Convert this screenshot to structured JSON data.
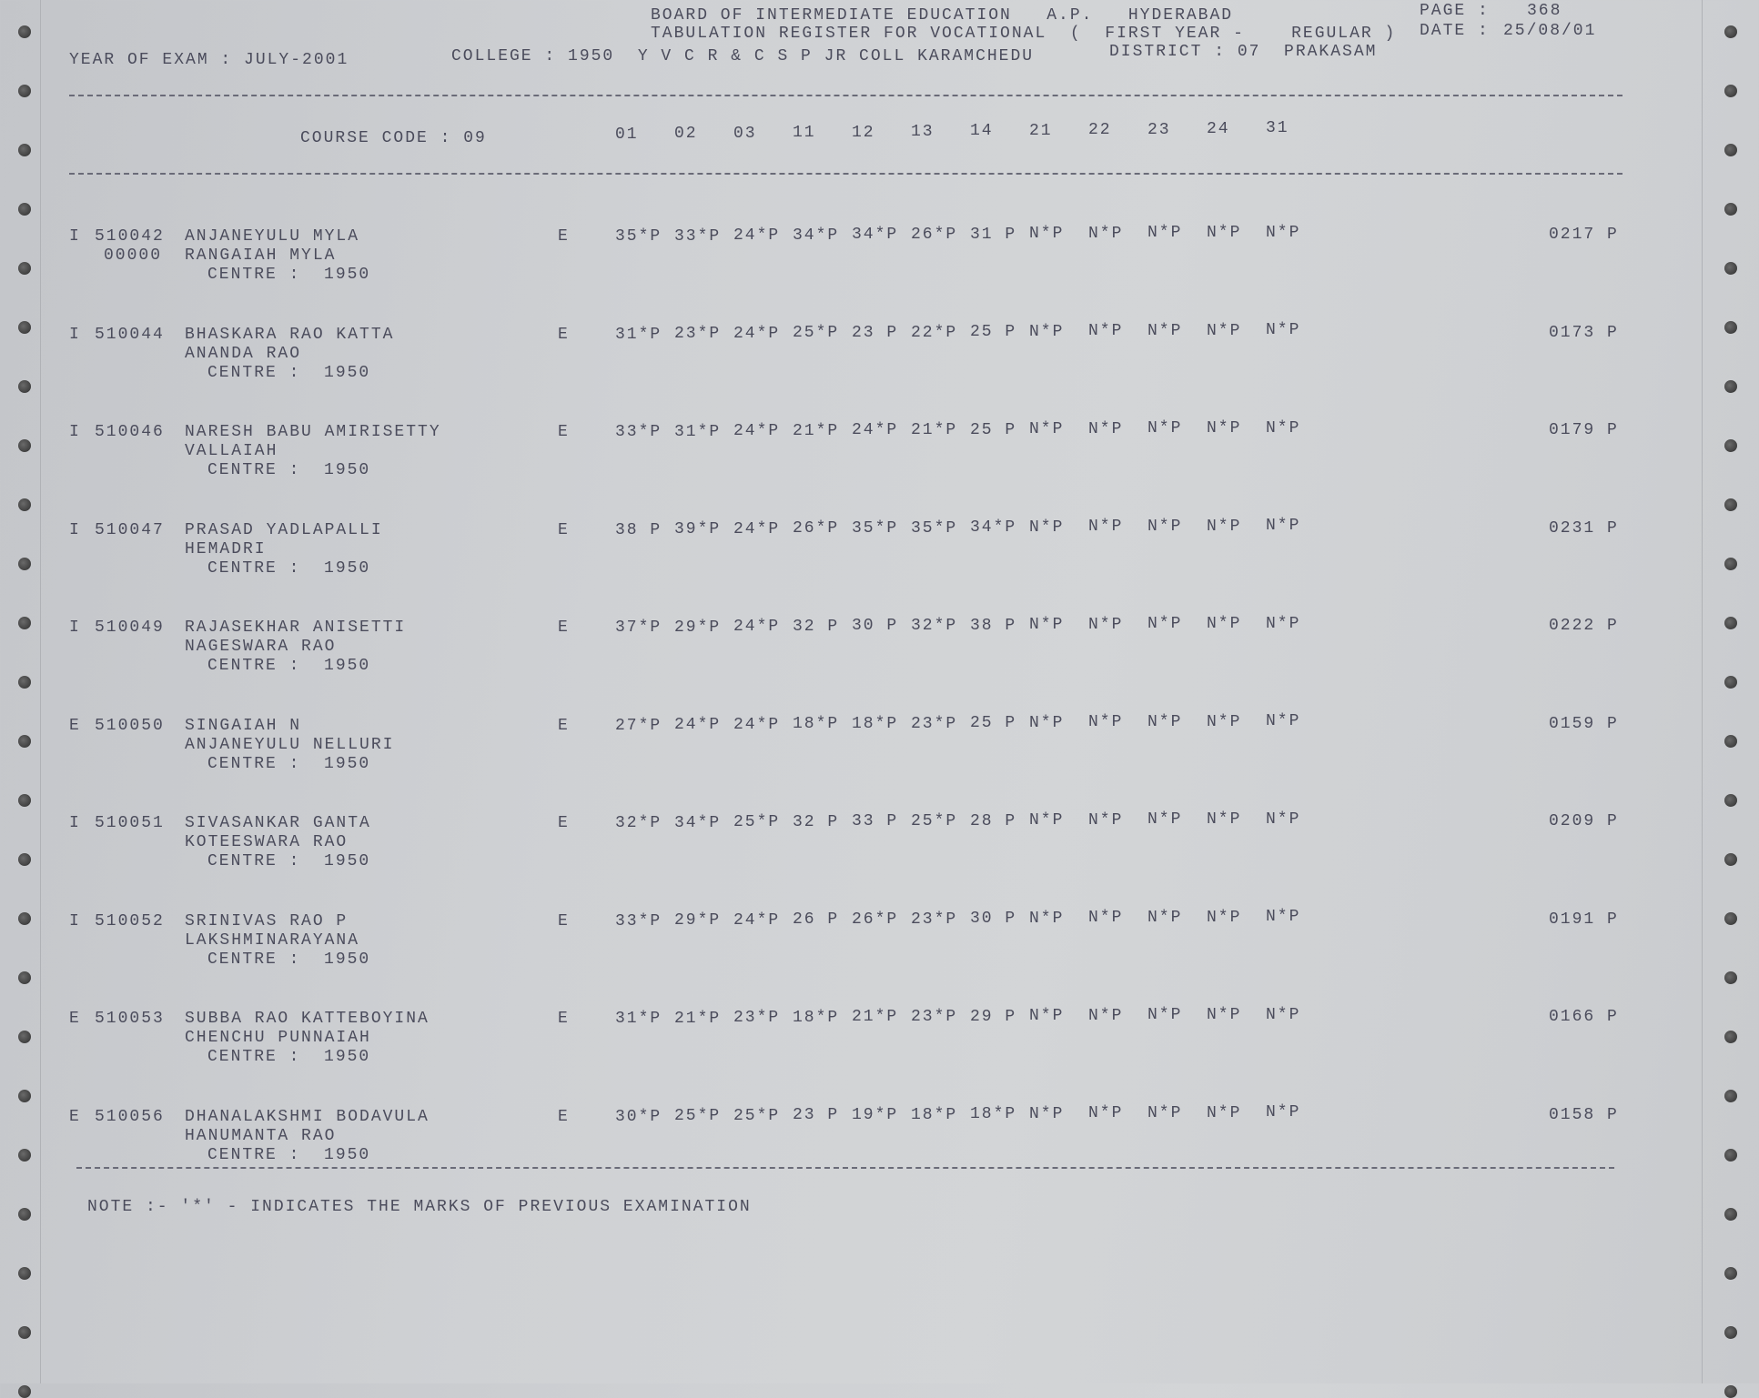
{
  "header": {
    "board": "BOARD OF INTERMEDIATE EDUCATION   A.P.   HYDERABAD",
    "register": "TABULATION REGISTER FOR VOCATIONAL  (  FIRST YEAR -    REGULAR )",
    "page_label": "PAGE :",
    "page_number": "368",
    "date_label": "DATE :",
    "date": "25/08/01",
    "year_of_exam": "YEAR OF EXAM : JULY-2001",
    "college": "COLLEGE : 1950  Y V C R & C S P JR COLL KARAMCHEDU",
    "district": "DISTRICT : 07  PRAKASAM"
  },
  "columns": {
    "course_code": "COURSE CODE : 09",
    "subject_codes": [
      "01",
      "02",
      "03",
      "11",
      "12",
      "13",
      "14",
      "21",
      "22",
      "23",
      "24",
      "31"
    ]
  },
  "records": [
    {
      "type": "I",
      "roll": "510042",
      "name": "ANJANEYULU MYLA",
      "sub_id": "00000",
      "parent": "RANGAIAH MYLA",
      "centre": "CENTRE :  1950",
      "medium": "E",
      "marks": [
        "35*P",
        "33*P",
        "24*P",
        "34*P",
        "34*P",
        "26*P",
        "31 P",
        "N*P",
        "N*P",
        "N*P",
        "N*P",
        "N*P"
      ],
      "total": "0217 P"
    },
    {
      "type": "I",
      "roll": "510044",
      "name": "BHASKARA RAO KATTA",
      "sub_id": "",
      "parent": "ANANDA RAO",
      "centre": "CENTRE :  1950",
      "medium": "E",
      "marks": [
        "31*P",
        "23*P",
        "24*P",
        "25*P",
        "23 P",
        "22*P",
        "25 P",
        "N*P",
        "N*P",
        "N*P",
        "N*P",
        "N*P"
      ],
      "total": "0173 P"
    },
    {
      "type": "I",
      "roll": "510046",
      "name": "NARESH BABU AMIRISETTY",
      "sub_id": "",
      "parent": "VALLAIAH",
      "centre": "CENTRE :  1950",
      "medium": "E",
      "marks": [
        "33*P",
        "31*P",
        "24*P",
        "21*P",
        "24*P",
        "21*P",
        "25 P",
        "N*P",
        "N*P",
        "N*P",
        "N*P",
        "N*P"
      ],
      "total": "0179 P"
    },
    {
      "type": "I",
      "roll": "510047",
      "name": "PRASAD YADLAPALLI",
      "sub_id": "",
      "parent": "HEMADRI",
      "centre": "CENTRE :  1950",
      "medium": "E",
      "marks": [
        "38 P",
        "39*P",
        "24*P",
        "26*P",
        "35*P",
        "35*P",
        "34*P",
        "N*P",
        "N*P",
        "N*P",
        "N*P",
        "N*P"
      ],
      "total": "0231 P"
    },
    {
      "type": "I",
      "roll": "510049",
      "name": "RAJASEKHAR ANISETTI",
      "sub_id": "",
      "parent": "NAGESWARA RAO",
      "centre": "CENTRE :  1950",
      "medium": "E",
      "marks": [
        "37*P",
        "29*P",
        "24*P",
        "32 P",
        "30 P",
        "32*P",
        "38 P",
        "N*P",
        "N*P",
        "N*P",
        "N*P",
        "N*P"
      ],
      "total": "0222 P"
    },
    {
      "type": "E",
      "roll": "510050",
      "name": "SINGAIAH N",
      "sub_id": "",
      "parent": "ANJANEYULU NELLURI",
      "centre": "CENTRE :  1950",
      "medium": "E",
      "marks": [
        "27*P",
        "24*P",
        "24*P",
        "18*P",
        "18*P",
        "23*P",
        "25 P",
        "N*P",
        "N*P",
        "N*P",
        "N*P",
        "N*P"
      ],
      "total": "0159 P"
    },
    {
      "type": "I",
      "roll": "510051",
      "name": "SIVASANKAR GANTA",
      "sub_id": "",
      "parent": "KOTEESWARA RAO",
      "centre": "CENTRE :  1950",
      "medium": "E",
      "marks": [
        "32*P",
        "34*P",
        "25*P",
        "32 P",
        "33 P",
        "25*P",
        "28 P",
        "N*P",
        "N*P",
        "N*P",
        "N*P",
        "N*P"
      ],
      "total": "0209 P"
    },
    {
      "type": "I",
      "roll": "510052",
      "name": "SRINIVAS RAO P",
      "sub_id": "",
      "parent": "LAKSHMINARAYANA",
      "centre": "CENTRE :  1950",
      "medium": "E",
      "marks": [
        "33*P",
        "29*P",
        "24*P",
        "26 P",
        "26*P",
        "23*P",
        "30 P",
        "N*P",
        "N*P",
        "N*P",
        "N*P",
        "N*P"
      ],
      "total": "0191 P"
    },
    {
      "type": "E",
      "roll": "510053",
      "name": "SUBBA RAO KATTEBOYINA",
      "sub_id": "",
      "parent": "CHENCHU PUNNAIAH",
      "centre": "CENTRE :  1950",
      "medium": "E",
      "marks": [
        "31*P",
        "21*P",
        "23*P",
        "18*P",
        "21*P",
        "23*P",
        "29 P",
        "N*P",
        "N*P",
        "N*P",
        "N*P",
        "N*P"
      ],
      "total": "0166 P"
    },
    {
      "type": "E",
      "roll": "510056",
      "name": "DHANALAKSHMI BODAVULA",
      "sub_id": "",
      "parent": "HANUMANTA RAO",
      "centre": "CENTRE :  1950",
      "medium": "E",
      "marks": [
        "30*P",
        "25*P",
        "25*P",
        "23 P",
        "19*P",
        "18*P",
        "18*P",
        "N*P",
        "N*P",
        "N*P",
        "N*P",
        "N*P"
      ],
      "total": "0158 P"
    }
  ],
  "note": "NOTE :- '*' - INDICATES THE MARKS OF PREVIOUS EXAMINATION"
}
